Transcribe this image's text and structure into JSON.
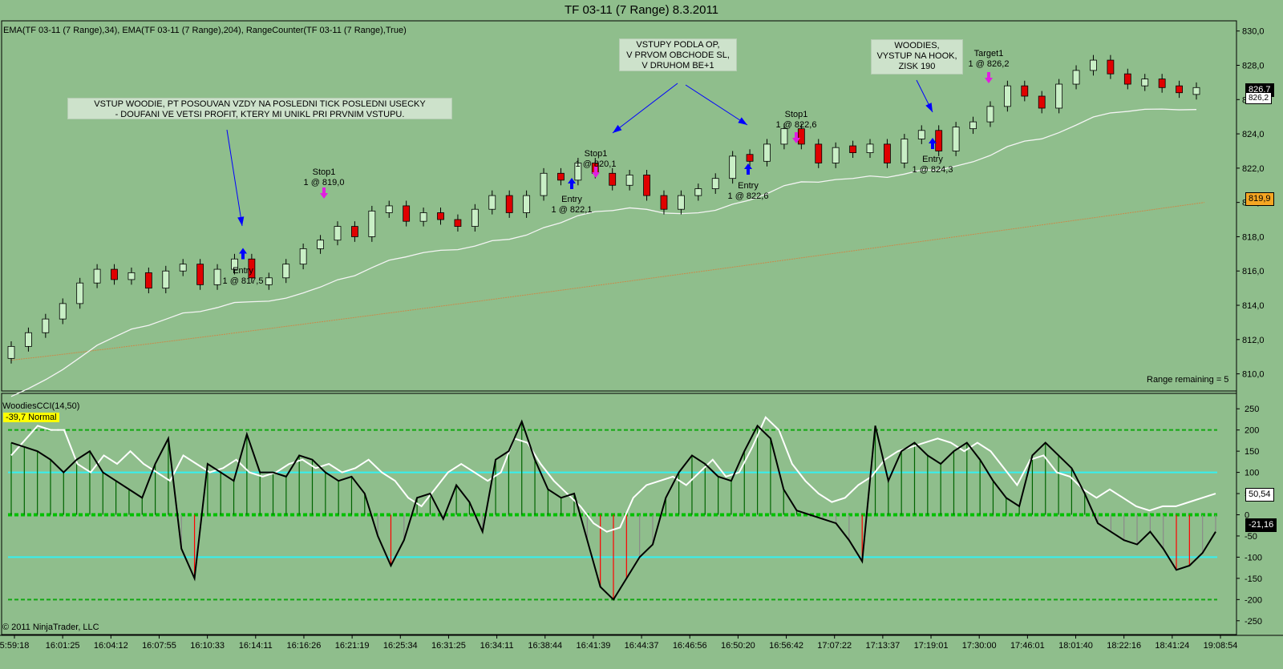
{
  "title": "TF 03-11 (7 Range)  8.3.2011",
  "indicators_label": "EMA(TF 03-11 (7 Range),34), EMA(TF 03-11 (7 Range),204), RangeCounter(TF 03-11 (7 Range),True)",
  "range_remaining": "Range remaining = 5",
  "cci_label": "WoodiesCCI(14,50)",
  "cci_tag": "-39,7 Normal",
  "copyright": "© 2011 NinjaTrader, LLC",
  "price_tags": {
    "last": "826,7",
    "ema34": "826,2",
    "ema204": "819,9"
  },
  "cci_tags": {
    "a": "50,54",
    "b": "-21,16"
  },
  "notes": [
    {
      "id": "n1",
      "text": "VSTUP WOODIE, PT POSOUVAN VZDY NA POSLEDNI TICK POSLEDNI USECKY\n- DOUFANI VE VETSI PROFIT, KTERY MI UNIKL PRI PRVNIM VSTUPU."
    },
    {
      "id": "n2",
      "text": "VSTUPY PODLA OP,\nV PRVOM OBCHODE SL,\nV DRUHOM BE+1"
    },
    {
      "id": "n3",
      "text": "WOODIES,\nVYSTUP NA HOOK,\nZISK 190"
    }
  ],
  "trade_labels": [
    {
      "id": "e1",
      "text": "Entry\n1 @ 817,5"
    },
    {
      "id": "s1",
      "text": "Stop1\n1 @ 819,0"
    },
    {
      "id": "e2",
      "text": "Entry\n1 @ 822,1"
    },
    {
      "id": "s2",
      "text": "Stop1\n1 @ 820,1"
    },
    {
      "id": "e3",
      "text": "Entry\n1 @ 822,6"
    },
    {
      "id": "s3",
      "text": "Stop1\n1 @ 822,6"
    },
    {
      "id": "e4",
      "text": "Entry\n1 @ 824,3"
    },
    {
      "id": "t4",
      "text": "Target1\n1 @ 826,2"
    }
  ],
  "chart_data": [
    {
      "type": "candlestick",
      "title": "TF 03-11 (7 Range)  8.3.2011",
      "ylim": [
        809,
        830.5
      ],
      "y_ticks": [
        "810,0",
        "812,0",
        "814,0",
        "816,0",
        "818,0",
        "820,0",
        "822,0",
        "824,0",
        "826,0",
        "828,0",
        "830,0"
      ],
      "x_tick_labels": [
        "5:59:18",
        "16:01:25",
        "16:04:12",
        "16:07:55",
        "16:10:33",
        "16:14:11",
        "16:16:26",
        "16:21:19",
        "16:25:34",
        "16:31:25",
        "16:34:11",
        "16:38:44",
        "16:41:39",
        "16:44:37",
        "16:46:56",
        "16:50:20",
        "16:56:42",
        "17:07:22",
        "17:13:37",
        "17:19:01",
        "17:30:00",
        "17:46:01",
        "18:01:40",
        "18:22:16",
        "18:41:24",
        "19:08:54"
      ],
      "close_path": [
        811.6,
        812.4,
        813.2,
        814.1,
        815.3,
        816.1,
        815.5,
        815.9,
        815.0,
        816.0,
        816.4,
        815.2,
        816.1,
        816.7,
        815.6,
        815.6,
        816.4,
        817.3,
        817.8,
        818.6,
        818.0,
        819.5,
        819.8,
        818.9,
        819.4,
        819.0,
        818.6,
        819.6,
        820.4,
        819.4,
        820.4,
        821.7,
        821.3,
        822.3,
        821.7,
        821.0,
        821.6,
        820.4,
        819.6,
        820.4,
        820.8,
        821.4,
        822.7,
        822.4,
        823.4,
        824.3,
        823.4,
        822.3,
        823.2,
        822.9,
        823.4,
        822.3,
        823.7,
        824.2,
        823.0,
        824.4,
        824.7,
        825.6,
        826.8,
        826.2,
        825.5,
        826.9,
        827.7,
        828.3,
        827.5,
        826.9,
        827.2,
        826.7,
        826.4,
        826.7
      ],
      "ema34": {
        "start": 809.5,
        "end": 826.3
      },
      "ema204": {
        "start": 810.8,
        "end": 820.0
      },
      "markers": [
        {
          "kind": "entry",
          "price": 817.5
        },
        {
          "kind": "stop",
          "price": 819.0
        },
        {
          "kind": "entry",
          "price": 822.1
        },
        {
          "kind": "stop",
          "price": 820.1
        },
        {
          "kind": "entry",
          "price": 822.6
        },
        {
          "kind": "stop",
          "price": 822.6
        },
        {
          "kind": "entry",
          "price": 824.3
        },
        {
          "kind": "target",
          "price": 826.2
        }
      ]
    },
    {
      "type": "bar",
      "title": "WoodiesCCI(14,50)",
      "ylim": [
        -275,
        275
      ],
      "y_ticks": [
        -250,
        -200,
        -150,
        -100,
        -50,
        0,
        50,
        100,
        150,
        200,
        250
      ],
      "levels": [
        200,
        100,
        -100,
        -200
      ],
      "cci14_path": [
        170,
        160,
        150,
        130,
        100,
        130,
        150,
        100,
        80,
        60,
        40,
        120,
        180,
        -80,
        -150,
        120,
        100,
        80,
        190,
        100,
        100,
        90,
        140,
        130,
        100,
        80,
        90,
        50,
        -50,
        -120,
        -60,
        40,
        50,
        -10,
        70,
        30,
        -40,
        130,
        150,
        220,
        130,
        60,
        40,
        50,
        -60,
        -170,
        -200,
        -150,
        -100,
        -70,
        40,
        100,
        140,
        120,
        90,
        80,
        150,
        210,
        180,
        60,
        10,
        0,
        -10,
        -20,
        -60,
        -110,
        210,
        80,
        150,
        170,
        140,
        120,
        150,
        170,
        130,
        80,
        40,
        20,
        140,
        170,
        140,
        110,
        50,
        -20,
        -40,
        -60,
        -70,
        -40,
        -80,
        -130,
        -120,
        -90,
        -40
      ],
      "cci50_path": [
        140,
        175,
        210,
        200,
        200,
        120,
        100,
        140,
        120,
        150,
        120,
        100,
        80,
        140,
        120,
        100,
        110,
        130,
        100,
        90,
        100,
        120,
        130,
        110,
        120,
        100,
        110,
        130,
        100,
        80,
        40,
        20,
        60,
        100,
        120,
        100,
        80,
        100,
        180,
        170,
        120,
        80,
        50,
        20,
        -20,
        -40,
        -30,
        40,
        70,
        80,
        90,
        70,
        100,
        130,
        90,
        100,
        160,
        230,
        200,
        120,
        80,
        50,
        30,
        40,
        70,
        90,
        130,
        150,
        160,
        170,
        180,
        170,
        150,
        170,
        150,
        110,
        70,
        130,
        140,
        100,
        90,
        60,
        40,
        60,
        40,
        20,
        10,
        20,
        20,
        30,
        40,
        50
      ]
    }
  ]
}
